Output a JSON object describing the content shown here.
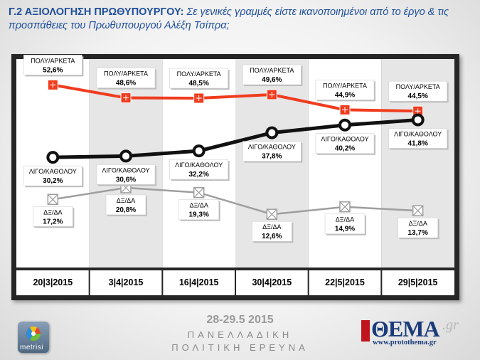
{
  "title": {
    "lead": "Γ.2 ΑΞΙΟΛΟΓΗΣΗ ΠΡΩΘΥΠΟΥΡΓΟΥ:",
    "question": "Σε γενικές γραμμές είστε ικανοποιημένοι από το έργο & τις προσπάθειες του Πρωθυπουργού Αλέξη Τσίπρα;"
  },
  "chart_data": {
    "type": "line",
    "categories": [
      "20|3|2015",
      "3|4|2015",
      "16|4|2015",
      "30|4|2015",
      "22|5|2015",
      "29|5|2015"
    ],
    "ylim": [
      0,
      60
    ],
    "grid": false,
    "series": [
      {
        "name": "ΠΟΛΥ/ΑΡΚΕΤΑ",
        "color": "#f03c1e",
        "values": [
          52.6,
          48.6,
          48.5,
          49.6,
          44.9,
          44.5
        ],
        "labels": [
          "52,6%",
          "48,6%",
          "48,5%",
          "49,6%",
          "44,9%",
          "44,5%"
        ]
      },
      {
        "name": "ΛΙΓΟ/ΚΑΘΟΛΟΥ",
        "color": "#111111",
        "values": [
          30.2,
          30.6,
          32.2,
          37.8,
          40.2,
          41.8
        ],
        "labels": [
          "30,2%",
          "30,6%",
          "32,2%",
          "37,8%",
          "40,2%",
          "41,8%"
        ]
      },
      {
        "name": "ΔΞ/ΔΑ",
        "color": "#9e9e9e",
        "values": [
          17.2,
          20.8,
          19.3,
          12.6,
          14.9,
          13.7
        ],
        "labels": [
          "17,2%",
          "20,8%",
          "19,3%",
          "12,6%",
          "14,9%",
          "13,7%"
        ]
      }
    ]
  },
  "footer": {
    "date": "28-29.5 2015",
    "line1": "ΠΑΝΕΛΛΑΔΙΚΗ",
    "line2": "ΠΟΛΙΤΙΚΗ ΕΡΕΥΝΑ"
  },
  "logos": {
    "left": "metrisi",
    "right_word": "ΘΕΜΑ",
    "right_suffix": ".gr",
    "right_url": "www.protothema.gr"
  }
}
